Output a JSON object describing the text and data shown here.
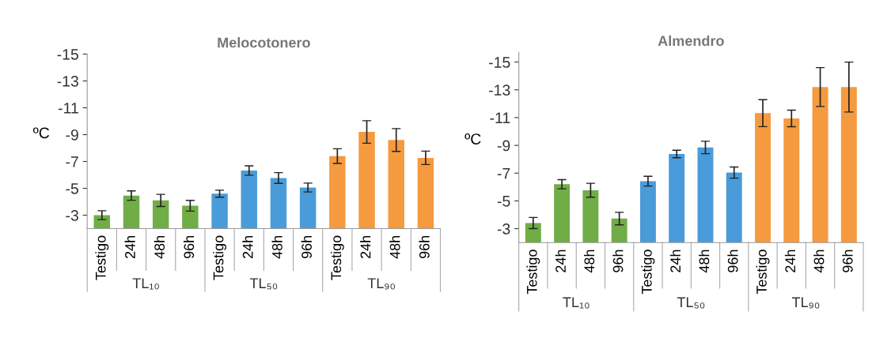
{
  "chart_data": [
    {
      "type": "bar",
      "title": "Melocotonero",
      "ylabel": "ºC",
      "categories": [
        "Testigo",
        "24h",
        "48h",
        "96h",
        "Testigo",
        "24h",
        "48h",
        "96h",
        "Testigo",
        "24h",
        "48h",
        "96h"
      ],
      "values": [
        -3.0,
        -4.46,
        -4.1,
        -3.7,
        -4.6,
        -6.33,
        -5.77,
        -5.06,
        -7.4,
        -9.2,
        -8.6,
        -7.27
      ],
      "errors": [
        0.33,
        0.35,
        0.45,
        0.4,
        0.26,
        0.35,
        0.4,
        0.33,
        0.55,
        0.84,
        0.85,
        0.5
      ],
      "colors": [
        "#70ad47",
        "#70ad47",
        "#70ad47",
        "#70ad47",
        "#4a9bd9",
        "#4a9bd9",
        "#4a9bd9",
        "#4a9bd9",
        "#f59a3e",
        "#f59a3e",
        "#f59a3e",
        "#f59a3e"
      ],
      "ylim": [
        -2,
        -15
      ],
      "yticks": [
        -3,
        -5,
        -7,
        -9,
        -11,
        -13,
        -15
      ],
      "annotations": [
        "TL₁₀",
        "TL₅₀",
        "TL₉₀"
      ],
      "grid": false,
      "legend": false
    },
    {
      "type": "bar",
      "title": "Almendro",
      "ylabel": "ºC",
      "categories": [
        "Testigo",
        "24h",
        "48h",
        "96h",
        "Testigo",
        "24h",
        "48h",
        "96h",
        "Testigo",
        "24h",
        "48h",
        "96h"
      ],
      "values": [
        -3.41,
        -6.2,
        -5.77,
        -3.73,
        -6.42,
        -8.38,
        -8.85,
        -7.04,
        -11.32,
        -10.94,
        -13.2,
        -13.2
      ],
      "errors": [
        0.4,
        0.33,
        0.5,
        0.45,
        0.35,
        0.27,
        0.45,
        0.4,
        0.97,
        0.6,
        1.4,
        1.8
      ],
      "colors": [
        "#70ad47",
        "#70ad47",
        "#70ad47",
        "#70ad47",
        "#4a9bd9",
        "#4a9bd9",
        "#4a9bd9",
        "#4a9bd9",
        "#f59a3e",
        "#f59a3e",
        "#f59a3e",
        "#f59a3e"
      ],
      "ylim": [
        -2,
        -15.7
      ],
      "yticks": [
        -3,
        -5,
        -7,
        -9,
        -11,
        -13,
        -15
      ],
      "annotations": [
        "TL₁₀",
        "TL₅₀",
        "TL₉₀"
      ],
      "grid": false,
      "legend": false
    }
  ]
}
